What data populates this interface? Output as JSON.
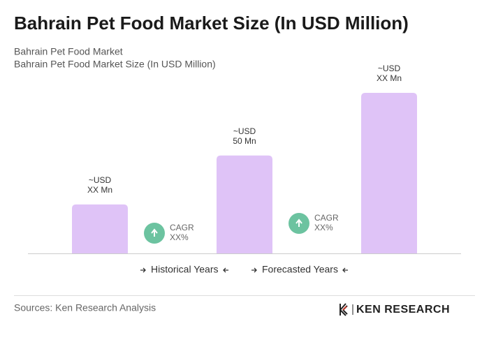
{
  "chart_data": {
    "type": "bar",
    "title": "Bahrain Pet Food Market Size (In USD Million)",
    "subtitle": [
      "Bahrain Pet Food Market",
      "Bahrain Pet Food Market Size (In USD Million)"
    ],
    "values": [
      25,
      50,
      82
    ],
    "value_labels": [
      [
        "~USD",
        "XX Mn"
      ],
      [
        "~USD",
        "50 Mn"
      ],
      [
        "~USD",
        "XX Mn"
      ]
    ],
    "color": "#dfc3f7",
    "cagr": [
      [
        "CAGR",
        "XX%"
      ],
      [
        "CAGR",
        "XX%"
      ]
    ],
    "cagr_color": "#6cc3a0",
    "legend": [
      "Historical Years",
      "Forecasted Years"
    ]
  },
  "footer": {
    "source": "Sources: Ken Research Analysis",
    "brand": "KEN RESEARCH"
  }
}
